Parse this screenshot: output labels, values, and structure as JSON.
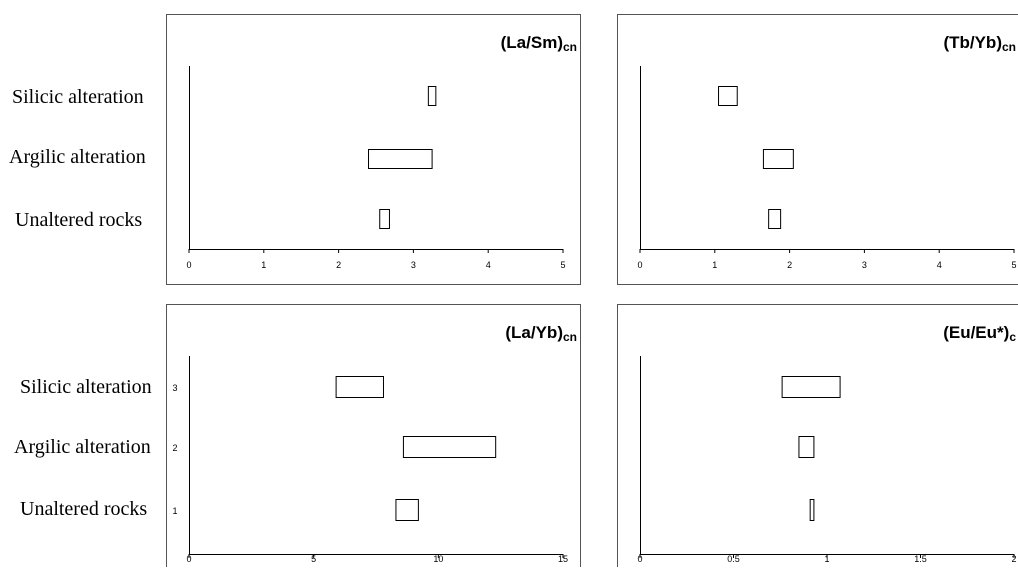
{
  "row_labels": {
    "top": [
      "Silicic alteration",
      "Argilic alteration",
      "Unaltered rocks"
    ],
    "bottom": [
      "Silicic alteration",
      "Argilic alteration",
      "Unaltered rocks"
    ]
  },
  "chart_data": [
    {
      "type": "range-bar",
      "title": "(La/Sm)cn",
      "title_main": "(La/Sm)",
      "title_sub": "cn",
      "xlim": [
        0,
        5
      ],
      "xticks": [
        "0",
        "1",
        "2",
        "3",
        "4",
        "5"
      ],
      "ytick_labels": [],
      "categories": [
        "Silicic alteration",
        "Argilic alteration",
        "Unaltered rocks"
      ],
      "ranges": [
        [
          3.2,
          3.3
        ],
        [
          2.4,
          3.25
        ],
        [
          2.55,
          2.68
        ]
      ]
    },
    {
      "type": "range-bar",
      "title": "(Tb/Yb)cn",
      "title_main": "(Tb/Yb)",
      "title_sub": "cn",
      "xlim": [
        0,
        5
      ],
      "xticks": [
        "0",
        "1",
        "2",
        "3",
        "4",
        "5"
      ],
      "ytick_labels": [],
      "categories": [
        "Silicic alteration",
        "Argilic alteration",
        "Unaltered rocks"
      ],
      "ranges": [
        [
          1.05,
          1.3
        ],
        [
          1.65,
          2.05
        ],
        [
          1.72,
          1.88
        ]
      ]
    },
    {
      "type": "range-bar",
      "title": "(La/Yb)cn",
      "title_main": "(La/Yb)",
      "title_sub": "cn",
      "xlim": [
        0,
        15
      ],
      "xticks": [
        "0",
        "5",
        "10",
        "15"
      ],
      "ytick_labels": [
        "3",
        "2",
        "1"
      ],
      "categories": [
        "Silicic alteration",
        "Argilic alteration",
        "Unaltered rocks"
      ],
      "ranges": [
        [
          5.9,
          7.8
        ],
        [
          8.6,
          12.3
        ],
        [
          8.3,
          9.2
        ]
      ]
    },
    {
      "type": "range-bar",
      "title": "(Eu/Eu*)c",
      "title_main": "(Eu/Eu*)",
      "title_sub": "c",
      "xlim": [
        0,
        2
      ],
      "xticks": [
        "0",
        "0.5",
        "1",
        "1.5",
        "2"
      ],
      "ytick_labels": [],
      "categories": [
        "Silicic alteration",
        "Argilic alteration",
        "Unaltered rocks"
      ],
      "ranges": [
        [
          0.76,
          1.07
        ],
        [
          0.85,
          0.93
        ],
        [
          0.91,
          0.93
        ]
      ]
    }
  ]
}
